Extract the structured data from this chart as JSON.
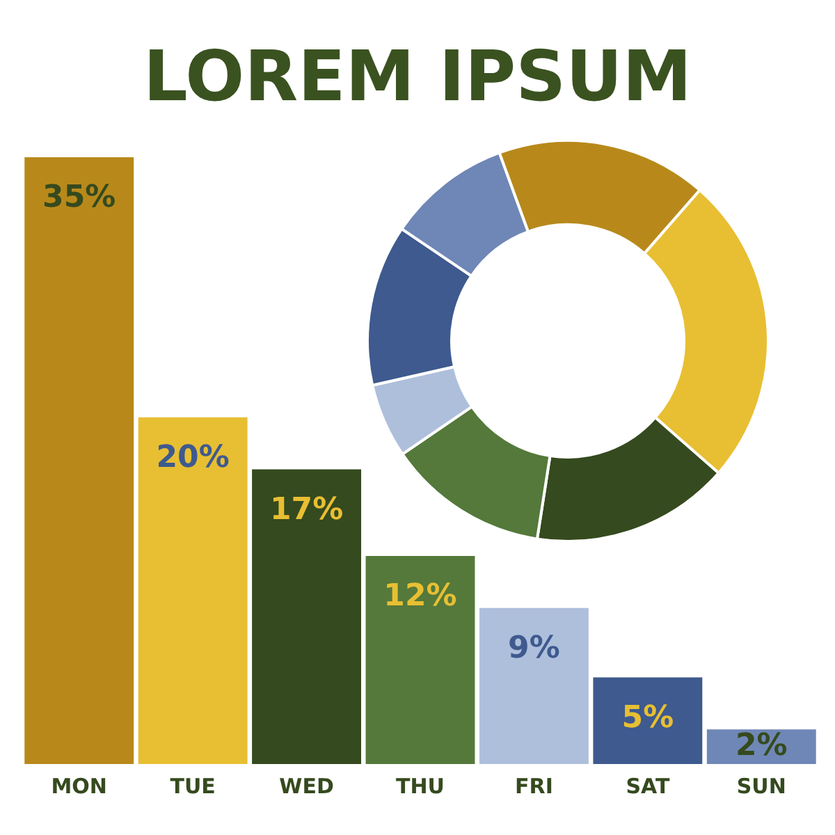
{
  "chart_data": [
    {
      "type": "bar",
      "title": "LOREM IPSUM",
      "categories": [
        "MON",
        "TUE",
        "WED",
        "THU",
        "FRI",
        "SAT",
        "SUN"
      ],
      "values": [
        35,
        20,
        17,
        12,
        9,
        5,
        2
      ],
      "value_labels": [
        "35%",
        "20%",
        "17%",
        "12%",
        "9%",
        "5%",
        "2%"
      ],
      "colors": [
        "#b8891a",
        "#e8bf33",
        "#354a1e",
        "#54793a",
        "#aebfdc",
        "#3e5a8e",
        "#6f87b6"
      ],
      "legend": false,
      "grid": false
    },
    {
      "type": "donut",
      "categories": [
        null,
        null,
        null,
        null,
        null,
        null,
        null
      ],
      "values": [
        17,
        25,
        16,
        13,
        6,
        13,
        10
      ],
      "colors": [
        "#b8891a",
        "#e8bf33",
        "#354a1e",
        "#54793a",
        "#aebfdc",
        "#3e5a8e",
        "#6f87b6"
      ],
      "legend": false
    }
  ]
}
